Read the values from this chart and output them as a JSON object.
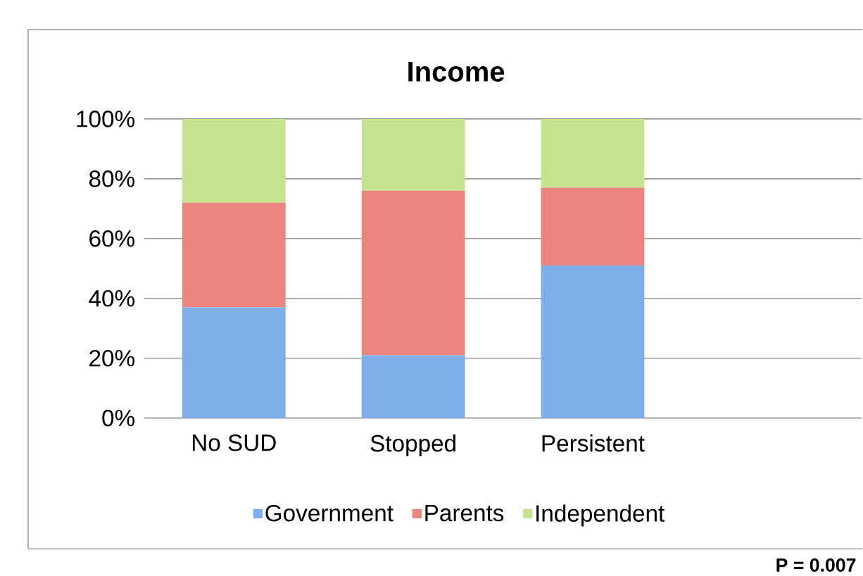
{
  "chart_data": {
    "type": "bar",
    "title": "Income",
    "stacked": true,
    "categories": [
      "No SUD",
      "Stopped",
      "Persistent"
    ],
    "series": [
      {
        "name": "Government",
        "color": "#7fafea",
        "values": [
          37,
          21,
          51
        ]
      },
      {
        "name": "Parents",
        "color": "#ec8580",
        "values": [
          35,
          55,
          26
        ]
      },
      {
        "name": "Independent",
        "color": "#c6e38f",
        "values": [
          28,
          24,
          23
        ]
      }
    ],
    "ylim": [
      0,
      100
    ],
    "yticks": [
      {
        "value": 0,
        "label": "0%"
      },
      {
        "value": 20,
        "label": "20%"
      },
      {
        "value": 40,
        "label": "40%"
      },
      {
        "value": 60,
        "label": "60%"
      },
      {
        "value": 80,
        "label": "80%"
      },
      {
        "value": 100,
        "label": "100%"
      }
    ],
    "grid": "y",
    "legend": "bottom",
    "annotations": [
      "P = 0.007"
    ]
  }
}
